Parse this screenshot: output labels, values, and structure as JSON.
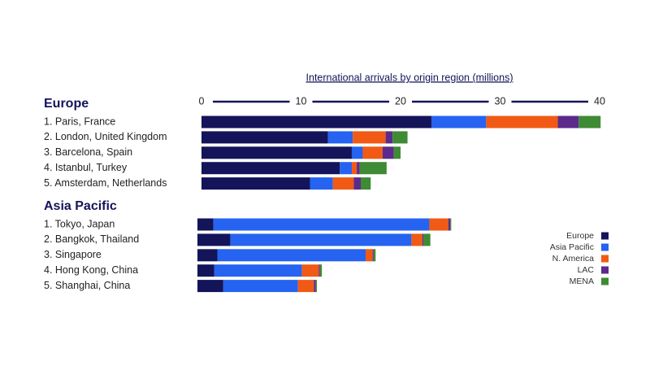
{
  "chart_data": {
    "type": "stacked-bar",
    "orientation": "horizontal",
    "title": "International arrivals by origin region (millions)",
    "groups": [
      {
        "name": "Europe",
        "categories": [
          "1. Paris, France",
          "2. London, United Kingdom",
          "3. Barcelona, Spain",
          "4. Istanbul, Turkey",
          "5. Amsterdam, Netherlands"
        ]
      },
      {
        "name": "Asia Pacific",
        "categories": [
          "1. Tokyo, Japan",
          "2. Bangkok, Thailand",
          "3. Singapore",
          "4. Hong Kong, China",
          "5. Shanghai, China"
        ]
      }
    ],
    "series": [
      {
        "name": "Europe",
        "color": "#14145a",
        "values": [
          23.1,
          12.7,
          15.1,
          13.9,
          10.9,
          1.6,
          3.3,
          2.0,
          1.7,
          2.6
        ]
      },
      {
        "name": "Asia Pacific",
        "color": "#2563f0",
        "values": [
          5.5,
          2.5,
          1.1,
          1.2,
          2.3,
          21.7,
          18.2,
          14.9,
          8.8,
          7.5
        ]
      },
      {
        "name": "N. America",
        "color": "#f05a14",
        "values": [
          7.2,
          3.3,
          2.0,
          0.5,
          2.1,
          1.9,
          1.1,
          0.7,
          1.7,
          1.6
        ]
      },
      {
        "name": "LAC",
        "color": "#5b2a8c",
        "values": [
          2.1,
          0.7,
          1.1,
          0.3,
          0.7,
          0.2,
          0.1,
          0.1,
          0.1,
          0.2
        ]
      },
      {
        "name": "MENA",
        "color": "#3f8a34",
        "values": [
          2.2,
          1.5,
          0.7,
          2.7,
          1.0,
          0.1,
          0.7,
          0.2,
          0.2,
          0.1
        ]
      }
    ],
    "xlim": [
      0,
      40
    ],
    "xticks": [
      0,
      10,
      20,
      30,
      40
    ],
    "legend": "right"
  }
}
